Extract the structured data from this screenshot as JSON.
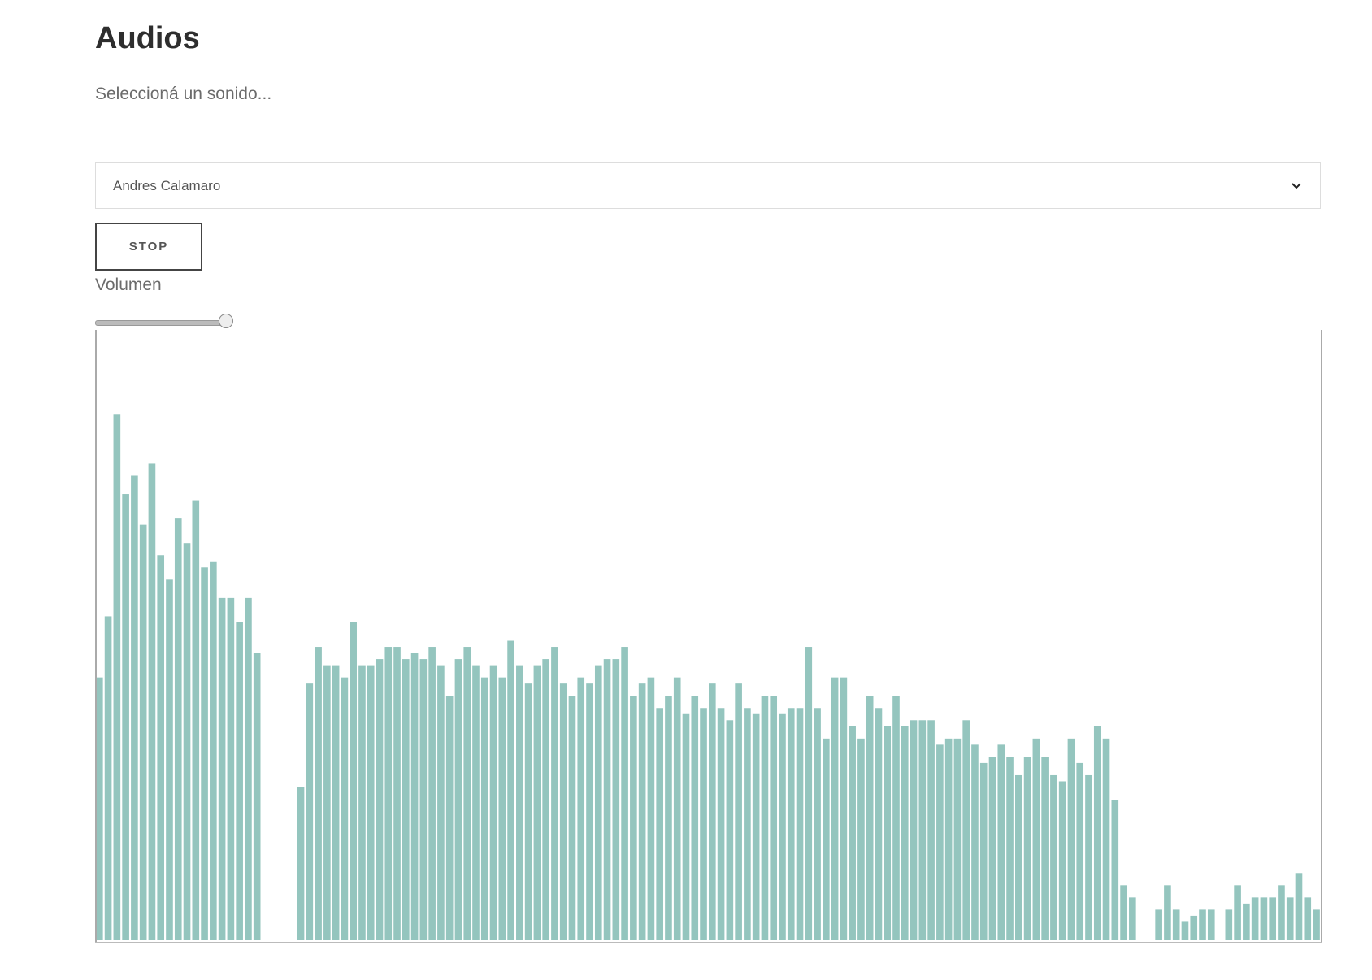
{
  "header": {
    "title": "Audios",
    "subtitle": "Seleccioná un sonido..."
  },
  "select": {
    "value": "Andres Calamaro"
  },
  "button": {
    "label": "STOP"
  },
  "volume": {
    "label": "Volumen"
  },
  "visualizer": {
    "color": "#94c5be",
    "values": [
      43,
      53,
      86,
      73,
      76,
      68,
      78,
      63,
      59,
      69,
      65,
      72,
      61,
      62,
      56,
      56,
      52,
      56,
      47,
      0,
      0,
      0,
      0,
      25,
      42,
      48,
      45,
      45,
      43,
      52,
      45,
      45,
      46,
      48,
      48,
      46,
      47,
      46,
      48,
      45,
      40,
      46,
      48,
      45,
      43,
      45,
      43,
      49,
      45,
      42,
      45,
      46,
      48,
      42,
      40,
      43,
      42,
      45,
      46,
      46,
      48,
      40,
      42,
      43,
      38,
      40,
      43,
      37,
      40,
      38,
      42,
      38,
      36,
      42,
      38,
      37,
      40,
      40,
      37,
      38,
      38,
      48,
      38,
      33,
      43,
      43,
      35,
      33,
      40,
      38,
      35,
      40,
      35,
      36,
      36,
      36,
      32,
      33,
      33,
      36,
      32,
      29,
      30,
      32,
      30,
      27,
      30,
      33,
      30,
      27,
      26,
      33,
      29,
      27,
      35,
      33,
      23,
      9,
      7,
      0,
      0,
      5,
      9,
      5,
      3,
      4,
      5,
      5,
      0,
      5,
      9,
      6,
      7,
      7,
      7,
      9,
      7,
      11,
      7,
      5
    ]
  }
}
